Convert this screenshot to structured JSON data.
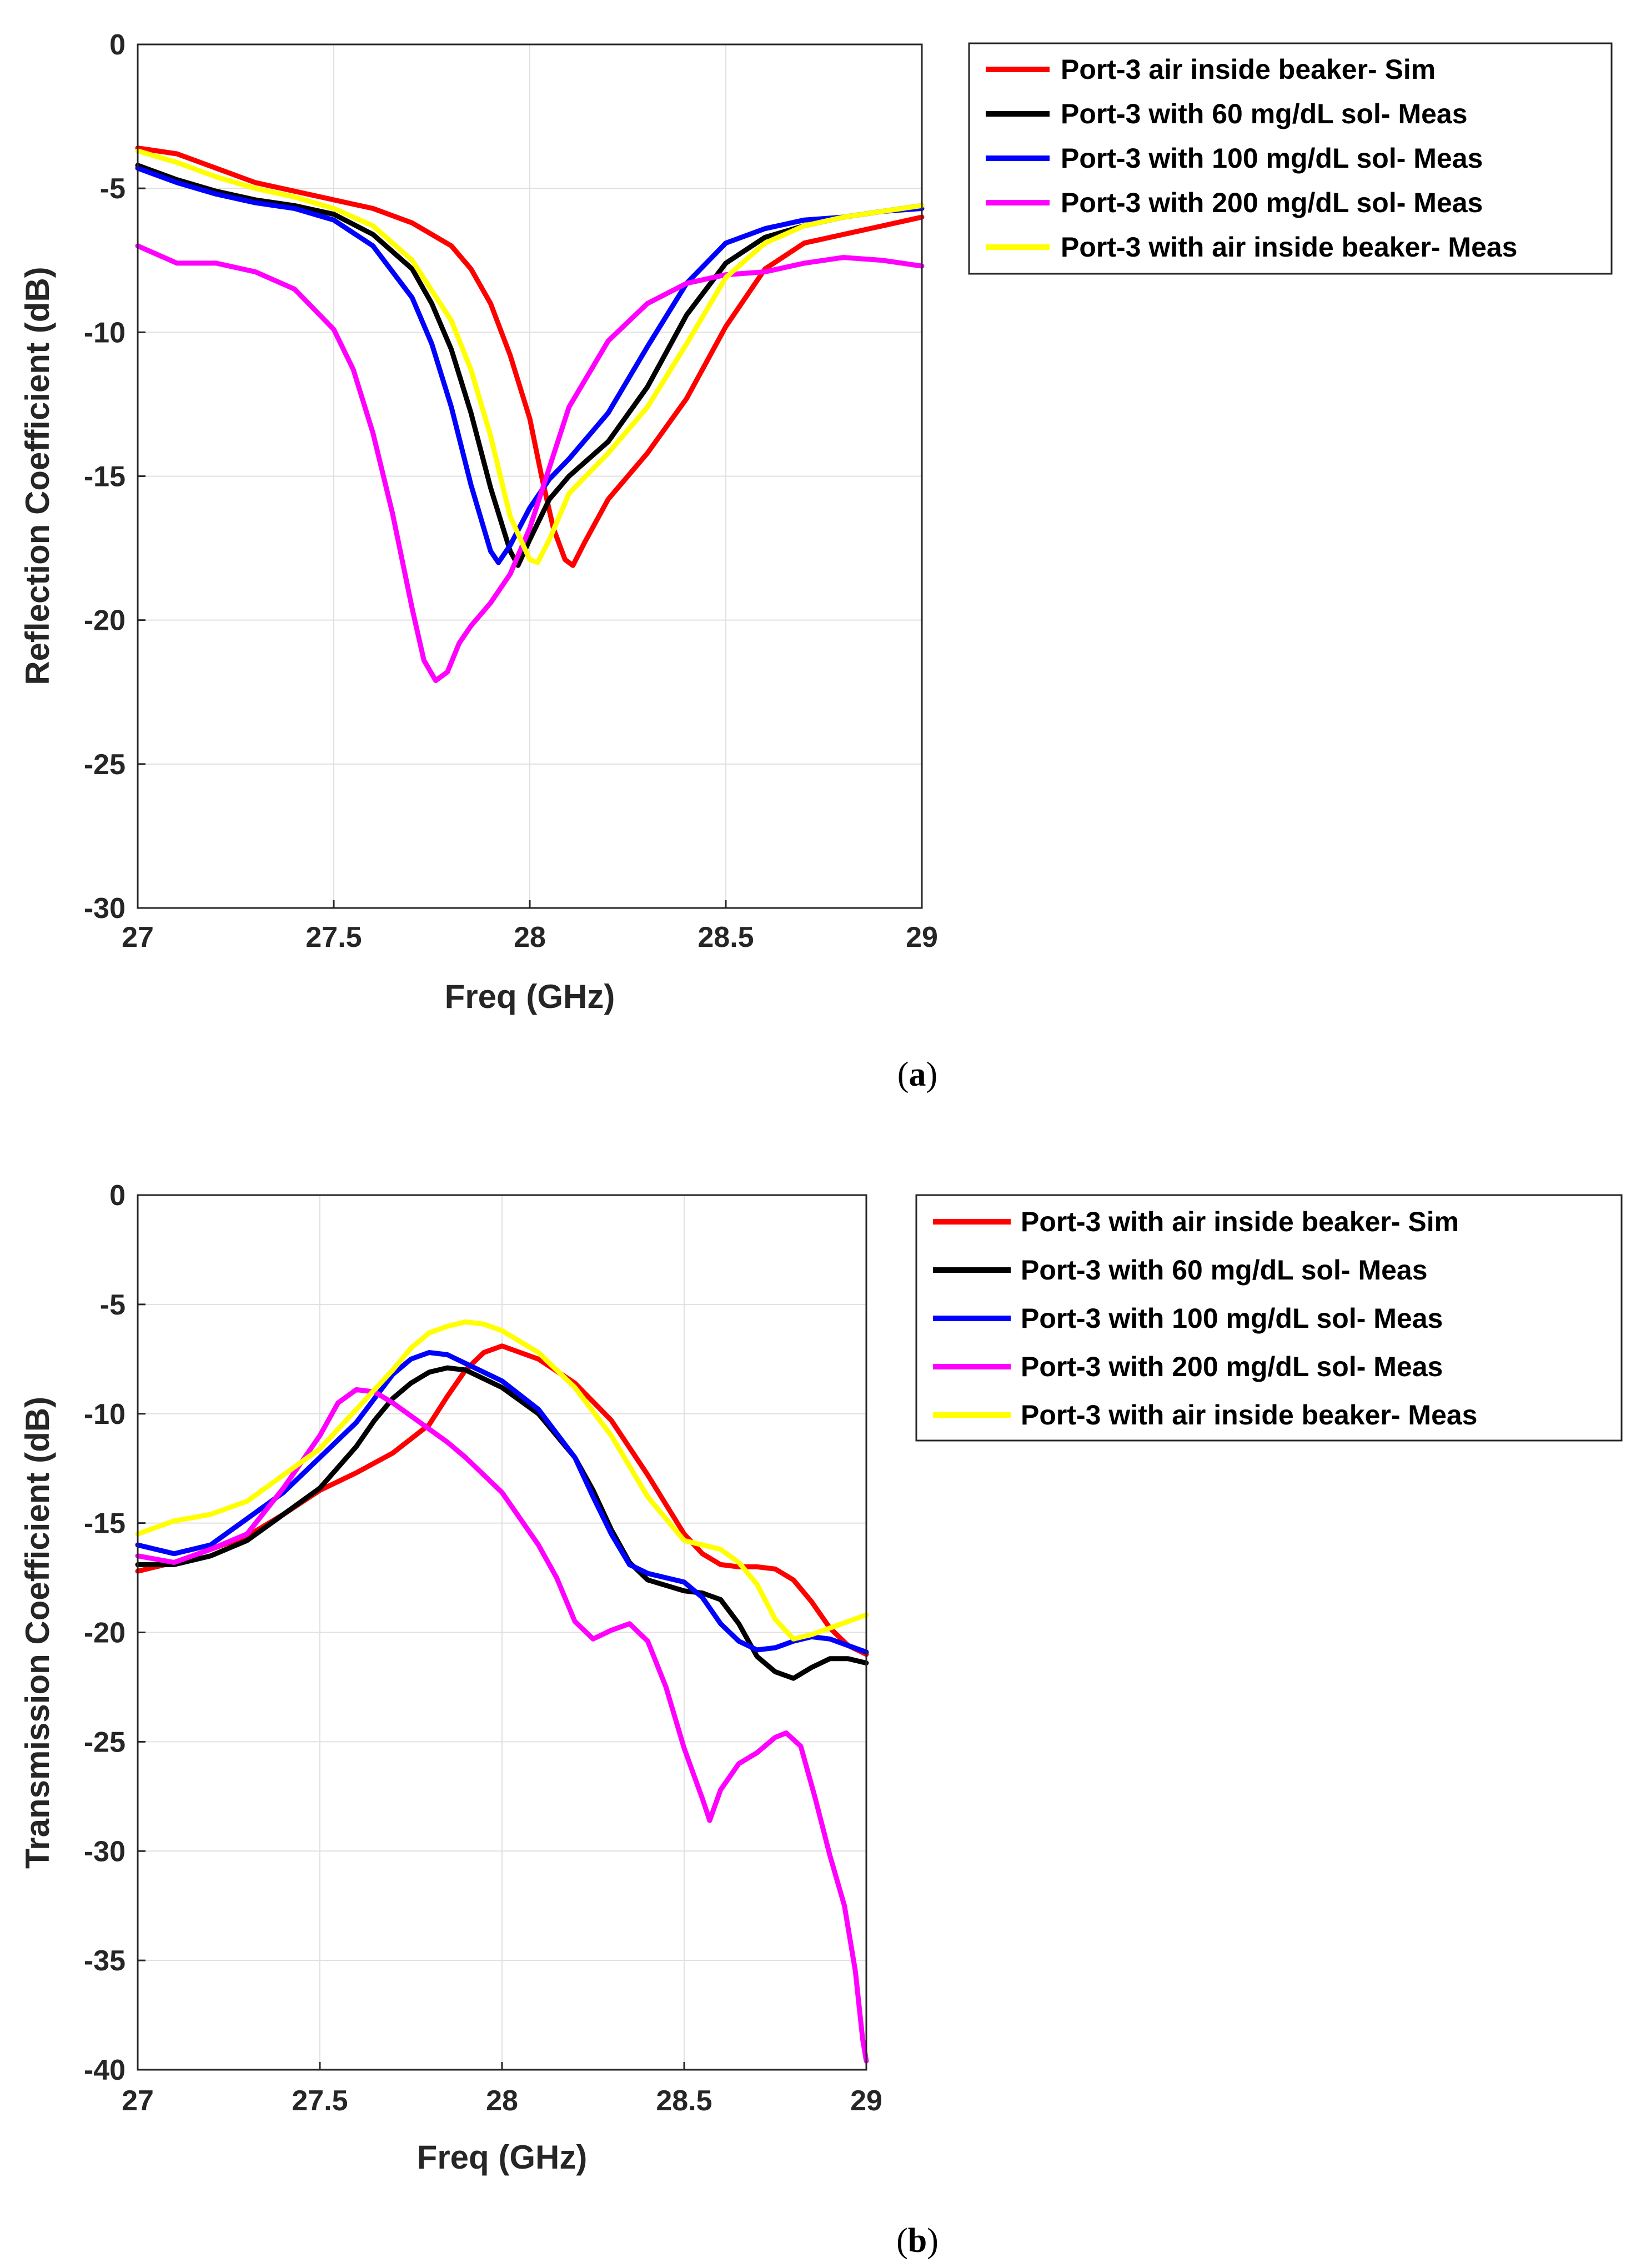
{
  "chart_data": [
    {
      "type": "line",
      "caption": "a",
      "xlabel": "Freq (GHz)",
      "ylabel": "Reflection Coefficient (dB)",
      "xlim": [
        27,
        29
      ],
      "ylim": [
        -30,
        0
      ],
      "xticks": [
        "27",
        "27.5",
        "28",
        "28.5",
        "29"
      ],
      "yticks": [
        "0",
        "-5",
        "-10",
        "-15",
        "-20",
        "-25",
        "-30"
      ],
      "grid": true,
      "legend_position": "outside-top-right",
      "series": [
        {
          "name": "Port-3 air inside beaker- Sim",
          "color": "#ff0000",
          "x": [
            27.0,
            27.1,
            27.2,
            27.3,
            27.4,
            27.5,
            27.6,
            27.7,
            27.8,
            27.85,
            27.9,
            27.95,
            28.0,
            28.03,
            28.06,
            28.09,
            28.11,
            28.14,
            28.2,
            28.3,
            28.4,
            28.5,
            28.6,
            28.7,
            28.8,
            28.9,
            29.0
          ],
          "y": [
            -3.6,
            -3.8,
            -4.3,
            -4.8,
            -5.1,
            -5.4,
            -5.7,
            -6.2,
            -7.0,
            -7.8,
            -9.0,
            -10.8,
            -13.0,
            -15.0,
            -16.8,
            -17.9,
            -18.1,
            -17.3,
            -15.8,
            -14.2,
            -12.3,
            -9.8,
            -7.8,
            -6.9,
            -6.6,
            -6.3,
            -6.0
          ]
        },
        {
          "name": "Port-3 with 60 mg/dL sol- Meas",
          "color": "#000000",
          "x": [
            27.0,
            27.1,
            27.2,
            27.3,
            27.4,
            27.5,
            27.6,
            27.7,
            27.75,
            27.8,
            27.85,
            27.9,
            27.95,
            27.97,
            28.0,
            28.05,
            28.1,
            28.2,
            28.3,
            28.4,
            28.5,
            28.6,
            28.7,
            28.8,
            28.9,
            29.0
          ],
          "y": [
            -4.2,
            -4.7,
            -5.1,
            -5.4,
            -5.6,
            -5.9,
            -6.6,
            -7.8,
            -9.0,
            -10.6,
            -12.8,
            -15.4,
            -17.6,
            -18.1,
            -17.2,
            -15.8,
            -15.0,
            -13.8,
            -11.9,
            -9.4,
            -7.6,
            -6.7,
            -6.3,
            -6.0,
            -5.8,
            -5.6
          ]
        },
        {
          "name": "Port-3 with 100 mg/dL sol- Meas",
          "color": "#0000ff",
          "x": [
            27.0,
            27.1,
            27.2,
            27.3,
            27.4,
            27.5,
            27.6,
            27.7,
            27.75,
            27.8,
            27.85,
            27.9,
            27.92,
            27.95,
            28.0,
            28.05,
            28.1,
            28.2,
            28.3,
            28.4,
            28.5,
            28.6,
            28.7,
            28.8,
            28.9,
            29.0
          ],
          "y": [
            -4.3,
            -4.8,
            -5.2,
            -5.5,
            -5.7,
            -6.1,
            -7.0,
            -8.8,
            -10.4,
            -12.6,
            -15.3,
            -17.6,
            -18.0,
            -17.4,
            -16.1,
            -15.1,
            -14.4,
            -12.8,
            -10.5,
            -8.3,
            -6.9,
            -6.4,
            -6.1,
            -6.0,
            -5.8,
            -5.7
          ]
        },
        {
          "name": "Port-3 with 200 mg/dL sol- Meas",
          "color": "#ff00ff",
          "x": [
            27.0,
            27.1,
            27.2,
            27.3,
            27.4,
            27.5,
            27.55,
            27.6,
            27.65,
            27.7,
            27.73,
            27.76,
            27.79,
            27.82,
            27.85,
            27.9,
            27.95,
            28.0,
            28.05,
            28.1,
            28.2,
            28.3,
            28.4,
            28.5,
            28.6,
            28.7,
            28.8,
            28.9,
            29.0
          ],
          "y": [
            -7.0,
            -7.6,
            -7.6,
            -7.9,
            -8.5,
            -9.9,
            -11.3,
            -13.5,
            -16.3,
            -19.6,
            -21.4,
            -22.1,
            -21.8,
            -20.8,
            -20.2,
            -19.4,
            -18.4,
            -16.8,
            -14.7,
            -12.6,
            -10.3,
            -9.0,
            -8.3,
            -8.0,
            -7.9,
            -7.6,
            -7.4,
            -7.5,
            -7.7
          ]
        },
        {
          "name": "Port-3 with air inside beaker- Meas",
          "color": "#ffff00",
          "x": [
            27.0,
            27.1,
            27.2,
            27.3,
            27.4,
            27.5,
            27.6,
            27.7,
            27.8,
            27.85,
            27.9,
            27.95,
            28.0,
            28.02,
            28.05,
            28.1,
            28.2,
            28.3,
            28.4,
            28.5,
            28.6,
            28.7,
            28.8,
            28.9,
            29.0
          ],
          "y": [
            -3.7,
            -4.1,
            -4.6,
            -5.0,
            -5.3,
            -5.7,
            -6.3,
            -7.5,
            -9.6,
            -11.3,
            -13.6,
            -16.4,
            -17.9,
            -18.0,
            -17.2,
            -15.6,
            -14.2,
            -12.6,
            -10.4,
            -8.1,
            -6.9,
            -6.3,
            -6.0,
            -5.8,
            -5.6
          ]
        }
      ]
    },
    {
      "type": "line",
      "caption": "b",
      "xlabel": "Freq (GHz)",
      "ylabel": "Transmission Coefficient (dB)",
      "xlim": [
        27,
        29
      ],
      "ylim": [
        -40,
        0
      ],
      "xticks": [
        "27",
        "27.5",
        "28",
        "28.5",
        "29"
      ],
      "yticks": [
        "0",
        "-5",
        "-10",
        "-15",
        "-20",
        "-25",
        "-30",
        "-35",
        "-40"
      ],
      "grid": true,
      "legend_position": "outside-top-right",
      "series": [
        {
          "name": "Port-3 with air inside beaker- Sim",
          "color": "#ff0000",
          "x": [
            27.0,
            27.1,
            27.2,
            27.3,
            27.4,
            27.5,
            27.6,
            27.7,
            27.8,
            27.85,
            27.9,
            27.95,
            28.0,
            28.1,
            28.2,
            28.3,
            28.4,
            28.5,
            28.55,
            28.6,
            28.65,
            28.7,
            28.75,
            28.8,
            28.85,
            28.9,
            28.95,
            29.0
          ],
          "y": [
            -17.2,
            -16.8,
            -16.2,
            -15.6,
            -14.6,
            -13.5,
            -12.7,
            -11.8,
            -10.5,
            -9.2,
            -8.0,
            -7.2,
            -6.9,
            -7.5,
            -8.6,
            -10.3,
            -12.8,
            -15.5,
            -16.4,
            -16.9,
            -17.0,
            -17.0,
            -17.1,
            -17.6,
            -18.6,
            -19.8,
            -20.6,
            -21.0
          ]
        },
        {
          "name": "Port-3 with 60 mg/dL sol- Meas",
          "color": "#000000",
          "x": [
            27.0,
            27.1,
            27.2,
            27.3,
            27.4,
            27.5,
            27.6,
            27.65,
            27.7,
            27.75,
            27.8,
            27.85,
            27.9,
            28.0,
            28.1,
            28.2,
            28.25,
            28.3,
            28.35,
            28.4,
            28.5,
            28.55,
            28.6,
            28.65,
            28.7,
            28.75,
            28.8,
            28.85,
            28.9,
            28.95,
            29.0
          ],
          "y": [
            -16.9,
            -16.9,
            -16.5,
            -15.8,
            -14.6,
            -13.4,
            -11.5,
            -10.3,
            -9.3,
            -8.6,
            -8.1,
            -7.9,
            -8.0,
            -8.8,
            -10.0,
            -12.0,
            -13.5,
            -15.3,
            -16.8,
            -17.6,
            -18.1,
            -18.2,
            -18.5,
            -19.6,
            -21.1,
            -21.8,
            -22.1,
            -21.6,
            -21.2,
            -21.2,
            -21.4
          ]
        },
        {
          "name": "Port-3 with 100 mg/dL sol- Meas",
          "color": "#0000ff",
          "x": [
            27.0,
            27.1,
            27.2,
            27.3,
            27.4,
            27.5,
            27.6,
            27.65,
            27.7,
            27.75,
            27.8,
            27.85,
            27.9,
            28.0,
            28.1,
            28.2,
            28.25,
            28.3,
            28.35,
            28.4,
            28.5,
            28.55,
            28.6,
            28.65,
            28.7,
            28.75,
            28.8,
            28.85,
            28.9,
            28.95,
            29.0
          ],
          "y": [
            -16.0,
            -16.4,
            -16.0,
            -14.8,
            -13.6,
            -12.0,
            -10.4,
            -9.3,
            -8.2,
            -7.5,
            -7.2,
            -7.3,
            -7.7,
            -8.5,
            -9.8,
            -12.0,
            -13.8,
            -15.5,
            -16.9,
            -17.3,
            -17.7,
            -18.4,
            -19.6,
            -20.4,
            -20.8,
            -20.7,
            -20.4,
            -20.2,
            -20.3,
            -20.6,
            -20.9
          ]
        },
        {
          "name": "Port-3 with 200 mg/dL sol- Meas",
          "color": "#ff00ff",
          "x": [
            27.0,
            27.1,
            27.2,
            27.3,
            27.4,
            27.5,
            27.55,
            27.6,
            27.65,
            27.7,
            27.75,
            27.8,
            27.85,
            27.9,
            28.0,
            28.1,
            28.15,
            28.2,
            28.25,
            28.3,
            28.35,
            28.4,
            28.45,
            28.5,
            28.55,
            28.57,
            28.6,
            28.65,
            28.7,
            28.75,
            28.78,
            28.82,
            28.86,
            28.9,
            28.94,
            28.97,
            28.99,
            29.0
          ],
          "y": [
            -16.5,
            -16.8,
            -16.2,
            -15.5,
            -13.4,
            -11.0,
            -9.5,
            -8.9,
            -9.0,
            -9.5,
            -10.1,
            -10.7,
            -11.3,
            -12.0,
            -13.6,
            -16.0,
            -17.5,
            -19.5,
            -20.3,
            -19.9,
            -19.6,
            -20.4,
            -22.5,
            -25.3,
            -27.6,
            -28.6,
            -27.2,
            -26.0,
            -25.5,
            -24.8,
            -24.6,
            -25.2,
            -27.6,
            -30.2,
            -32.5,
            -35.5,
            -38.6,
            -39.6
          ]
        },
        {
          "name": "Port-3 with air inside beaker- Meas",
          "color": "#ffff00",
          "x": [
            27.0,
            27.1,
            27.2,
            27.3,
            27.4,
            27.5,
            27.6,
            27.7,
            27.75,
            27.8,
            27.85,
            27.9,
            27.95,
            28.0,
            28.1,
            28.2,
            28.3,
            28.4,
            28.5,
            28.6,
            28.65,
            28.7,
            28.75,
            28.8,
            28.85,
            28.9,
            28.95,
            29.0
          ],
          "y": [
            -15.5,
            -14.9,
            -14.6,
            -14.0,
            -12.8,
            -11.6,
            -9.8,
            -8.0,
            -7.0,
            -6.3,
            -6.0,
            -5.8,
            -5.9,
            -6.2,
            -7.2,
            -8.8,
            -11.0,
            -13.8,
            -15.8,
            -16.2,
            -16.8,
            -17.8,
            -19.4,
            -20.3,
            -20.1,
            -19.8,
            -19.5,
            -19.2
          ]
        }
      ]
    }
  ]
}
